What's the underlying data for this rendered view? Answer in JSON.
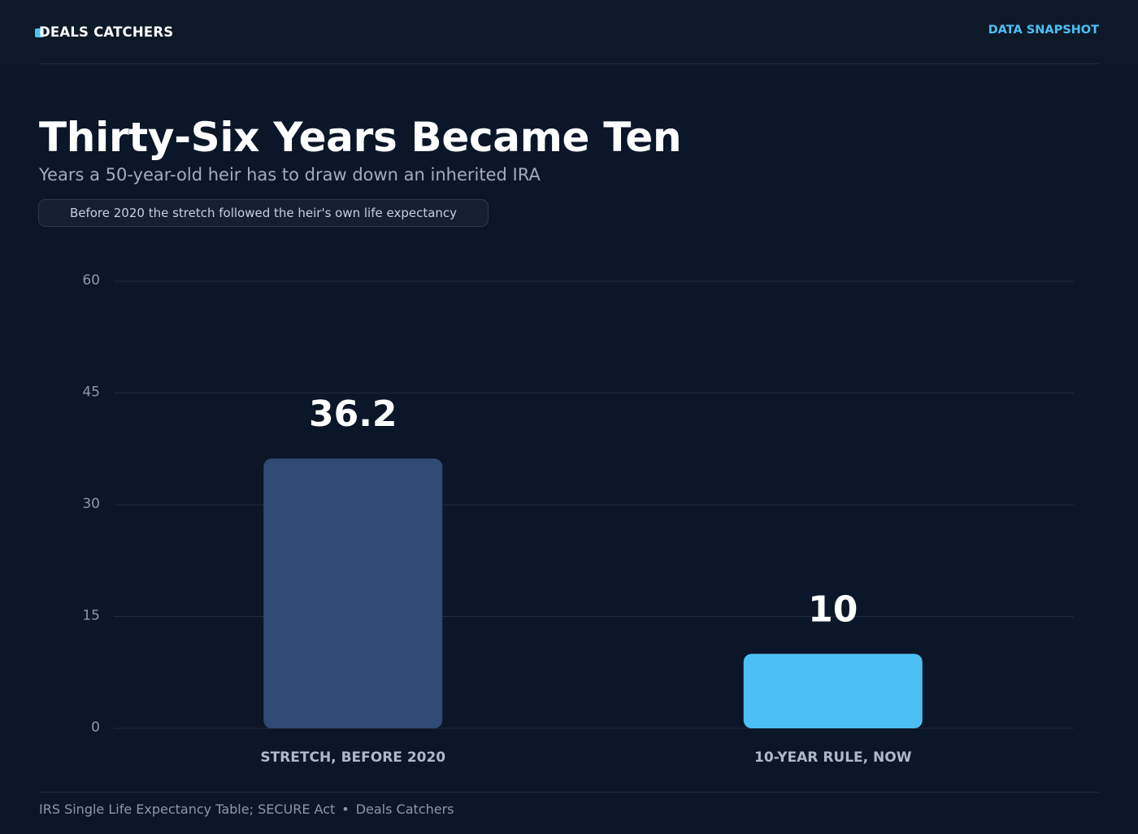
{
  "header": {
    "brand": "DEALS CATCHERS",
    "tag": "DATA SNAPSHOT"
  },
  "title": "Thirty-Six Years Became Ten",
  "subtitle": "Years a 50-year-old heir has to draw down an inherited IRA",
  "note": "Before 2020 the stretch followed the heir's own life expectancy",
  "colors": {
    "background": "#0b1628",
    "accent": "#4cc0f5",
    "bar_primary": "#2f4b73",
    "bar_highlight": "#4cc0f5",
    "grid": "#1f2b3e",
    "tick_text": "#8c97a8"
  },
  "chart_data": {
    "type": "bar",
    "categories": [
      "STRETCH, BEFORE 2020",
      "10-YEAR RULE, NOW"
    ],
    "values": [
      36.2,
      10
    ],
    "value_labels": [
      "36.2",
      "10"
    ],
    "ylim": [
      0,
      60
    ],
    "yticks": [
      0,
      15,
      30,
      45,
      60
    ],
    "grid": true,
    "legend": "none"
  },
  "footer": {
    "source": "IRS Single Life Expectancy Table; SECURE Act",
    "separator": "•",
    "credit": "Deals Catchers"
  }
}
